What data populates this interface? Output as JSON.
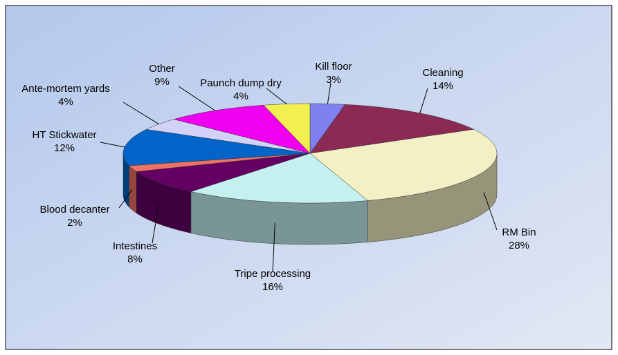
{
  "chart_data": {
    "type": "pie3d",
    "categories": [
      "Kill floor",
      "Cleaning",
      "RM Bin",
      "Tripe processing",
      "Intestines",
      "Blood decanter",
      "HT Stickwater",
      "Ante-mortem yards",
      "Other",
      "Paunch dump dry"
    ],
    "values": [
      3,
      14,
      28,
      16,
      8,
      2,
      12,
      4,
      9,
      4
    ],
    "value_labels": [
      "3%",
      "14%",
      "28%",
      "16%",
      "8%",
      "2%",
      "12%",
      "4%",
      "9%",
      "4%"
    ],
    "colors": [
      "#8080f0",
      "#8c2a56",
      "#f2f0c4",
      "#c4f0f0",
      "#640064",
      "#f07264",
      "#0064c8",
      "#d2d2f8",
      "#f000f0",
      "#f2f050"
    ]
  }
}
